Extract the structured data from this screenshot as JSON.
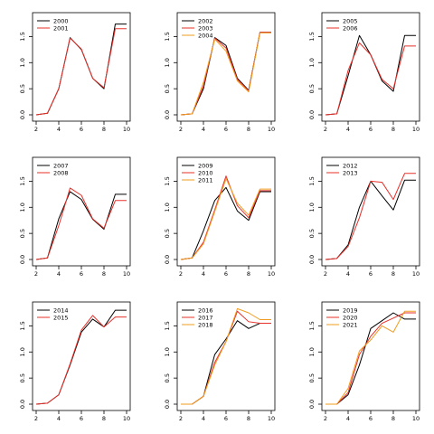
{
  "colors": {
    "black": "#000000",
    "red": "#e8302a",
    "orange": "#f29c1f",
    "axis": "#000000",
    "background": "#ffffff"
  },
  "chart_data": [
    {
      "type": "line",
      "x": [
        2,
        3,
        4,
        5,
        6,
        7,
        8,
        9,
        10
      ],
      "xticks": [
        2,
        4,
        6,
        8,
        10
      ],
      "yticks": [
        "0.0",
        "0.5",
        "1.0",
        "1.5"
      ],
      "xlim": [
        2,
        10
      ],
      "ylim": [
        0,
        1.75
      ],
      "legend_position": "top-left",
      "series": [
        {
          "name": "2000",
          "color": "black",
          "values": [
            0.0,
            0.03,
            0.5,
            1.48,
            1.25,
            0.7,
            0.5,
            1.74,
            1.74
          ]
        },
        {
          "name": "2001",
          "color": "red",
          "values": [
            0.0,
            0.03,
            0.5,
            1.47,
            1.26,
            0.7,
            0.52,
            1.65,
            1.65
          ]
        }
      ]
    },
    {
      "type": "line",
      "x": [
        2,
        3,
        4,
        5,
        6,
        7,
        8,
        9,
        10
      ],
      "xticks": [
        2,
        4,
        6,
        8,
        10
      ],
      "yticks": [
        "0.0",
        "0.5",
        "1.0",
        "1.5"
      ],
      "xlim": [
        2,
        10
      ],
      "ylim": [
        0,
        1.75
      ],
      "legend_position": "top-left",
      "series": [
        {
          "name": "2002",
          "color": "black",
          "values": [
            0.0,
            0.02,
            0.5,
            1.48,
            1.33,
            0.7,
            0.47,
            1.58,
            1.58
          ]
        },
        {
          "name": "2003",
          "color": "red",
          "values": [
            0.0,
            0.02,
            0.55,
            1.47,
            1.28,
            0.68,
            0.46,
            1.58,
            1.58
          ]
        },
        {
          "name": "2004",
          "color": "orange",
          "values": [
            0.0,
            0.02,
            0.62,
            1.45,
            1.22,
            0.65,
            0.44,
            1.57,
            1.57
          ]
        }
      ]
    },
    {
      "type": "line",
      "x": [
        2,
        3,
        4,
        5,
        6,
        7,
        8,
        9,
        10
      ],
      "xticks": [
        2,
        4,
        6,
        8,
        10
      ],
      "yticks": [
        "0.0",
        "0.5",
        "1.0",
        "1.5"
      ],
      "xlim": [
        2,
        10
      ],
      "ylim": [
        0,
        1.75
      ],
      "legend_position": "top-left",
      "series": [
        {
          "name": "2005",
          "color": "black",
          "values": [
            0.0,
            0.02,
            0.75,
            1.52,
            1.15,
            0.65,
            0.45,
            1.52,
            1.52
          ]
        },
        {
          "name": "2006",
          "color": "red",
          "values": [
            0.0,
            0.02,
            0.85,
            1.38,
            1.15,
            0.68,
            0.5,
            1.32,
            1.32
          ]
        }
      ]
    },
    {
      "type": "line",
      "x": [
        2,
        3,
        4,
        5,
        6,
        7,
        8,
        9,
        10
      ],
      "xticks": [
        2,
        4,
        6,
        8,
        10
      ],
      "yticks": [
        "0.0",
        "0.5",
        "1.0",
        "1.5"
      ],
      "xlim": [
        2,
        10
      ],
      "ylim": [
        0,
        1.75
      ],
      "legend_position": "top-left",
      "series": [
        {
          "name": "2007",
          "color": "black",
          "values": [
            0.0,
            0.03,
            0.78,
            1.3,
            1.15,
            0.77,
            0.58,
            1.25,
            1.25
          ]
        },
        {
          "name": "2008",
          "color": "red",
          "values": [
            0.0,
            0.03,
            0.65,
            1.37,
            1.23,
            0.78,
            0.6,
            1.13,
            1.13
          ]
        }
      ]
    },
    {
      "type": "line",
      "x": [
        2,
        3,
        4,
        5,
        6,
        7,
        8,
        9,
        10
      ],
      "xticks": [
        2,
        4,
        6,
        8,
        10
      ],
      "yticks": [
        "0.0",
        "0.5",
        "1.0",
        "1.5"
      ],
      "xlim": [
        2,
        10
      ],
      "ylim": [
        0,
        1.75
      ],
      "legend_position": "top-left",
      "series": [
        {
          "name": "2009",
          "color": "black",
          "values": [
            0.0,
            0.03,
            0.55,
            1.13,
            1.38,
            0.93,
            0.75,
            1.3,
            1.3
          ]
        },
        {
          "name": "2010",
          "color": "red",
          "values": [
            0.0,
            0.03,
            0.33,
            0.95,
            1.6,
            1.03,
            0.8,
            1.32,
            1.32
          ]
        },
        {
          "name": "2011",
          "color": "orange",
          "values": [
            0.0,
            0.03,
            0.3,
            0.92,
            1.55,
            1.08,
            0.85,
            1.35,
            1.35
          ]
        }
      ]
    },
    {
      "type": "line",
      "x": [
        2,
        3,
        4,
        5,
        6,
        7,
        8,
        9,
        10
      ],
      "xticks": [
        2,
        4,
        6,
        8,
        10
      ],
      "yticks": [
        "0.0",
        "0.5",
        "1.0",
        "1.5"
      ],
      "xlim": [
        2,
        10
      ],
      "ylim": [
        0,
        1.75
      ],
      "legend_position": "top-left",
      "series": [
        {
          "name": "2012",
          "color": "black",
          "values": [
            0.0,
            0.02,
            0.28,
            1.0,
            1.5,
            1.22,
            0.95,
            1.52,
            1.52
          ]
        },
        {
          "name": "2013",
          "color": "red",
          "values": [
            0.0,
            0.02,
            0.25,
            0.8,
            1.5,
            1.48,
            1.15,
            1.65,
            1.65
          ]
        }
      ]
    },
    {
      "type": "line",
      "x": [
        2,
        3,
        4,
        5,
        6,
        7,
        8,
        9,
        10
      ],
      "xticks": [
        2,
        4,
        6,
        8,
        10
      ],
      "yticks": [
        "0.0",
        "0.5",
        "1.0",
        "1.5"
      ],
      "xlim": [
        2,
        10
      ],
      "ylim": [
        0,
        1.75
      ],
      "legend_position": "top-left",
      "series": [
        {
          "name": "2014",
          "color": "black",
          "values": [
            0.0,
            0.02,
            0.18,
            0.75,
            1.38,
            1.63,
            1.48,
            1.8,
            1.8
          ]
        },
        {
          "name": "2015",
          "color": "red",
          "values": [
            0.0,
            0.02,
            0.18,
            0.77,
            1.42,
            1.7,
            1.48,
            1.67,
            1.67
          ]
        }
      ]
    },
    {
      "type": "line",
      "x": [
        2,
        3,
        4,
        5,
        6,
        7,
        8,
        9,
        10
      ],
      "xticks": [
        2,
        4,
        6,
        8,
        10
      ],
      "yticks": [
        "0.0",
        "0.5",
        "1.0",
        "1.5"
      ],
      "xlim": [
        2,
        10
      ],
      "ylim": [
        0,
        1.75
      ],
      "legend_position": "top-left",
      "series": [
        {
          "name": "2016",
          "color": "black",
          "values": [
            0.0,
            0.0,
            0.15,
            0.95,
            1.25,
            1.6,
            1.45,
            1.55,
            1.55
          ]
        },
        {
          "name": "2017",
          "color": "red",
          "values": [
            0.0,
            0.0,
            0.15,
            0.8,
            1.2,
            1.78,
            1.58,
            1.55,
            1.55
          ]
        },
        {
          "name": "2018",
          "color": "orange",
          "values": [
            0.0,
            0.0,
            0.15,
            0.75,
            1.2,
            1.83,
            1.75,
            1.62,
            1.62
          ]
        }
      ]
    },
    {
      "type": "line",
      "x": [
        2,
        3,
        4,
        5,
        6,
        7,
        8,
        9,
        10
      ],
      "xticks": [
        2,
        4,
        6,
        8,
        10
      ],
      "yticks": [
        "0.0",
        "0.5",
        "1.0",
        "1.5"
      ],
      "xlim": [
        2,
        10
      ],
      "ylim": [
        0,
        1.75
      ],
      "legend_position": "top-left",
      "series": [
        {
          "name": "2019",
          "color": "black",
          "values": [
            0.0,
            0.0,
            0.18,
            0.75,
            1.45,
            1.6,
            1.75,
            1.63,
            1.63
          ]
        },
        {
          "name": "2020",
          "color": "red",
          "values": [
            0.0,
            0.0,
            0.22,
            0.95,
            1.3,
            1.55,
            1.65,
            1.75,
            1.75
          ]
        },
        {
          "name": "2021",
          "color": "orange",
          "values": [
            0.0,
            0.0,
            0.3,
            1.02,
            1.23,
            1.5,
            1.38,
            1.78,
            1.78
          ]
        }
      ]
    }
  ]
}
